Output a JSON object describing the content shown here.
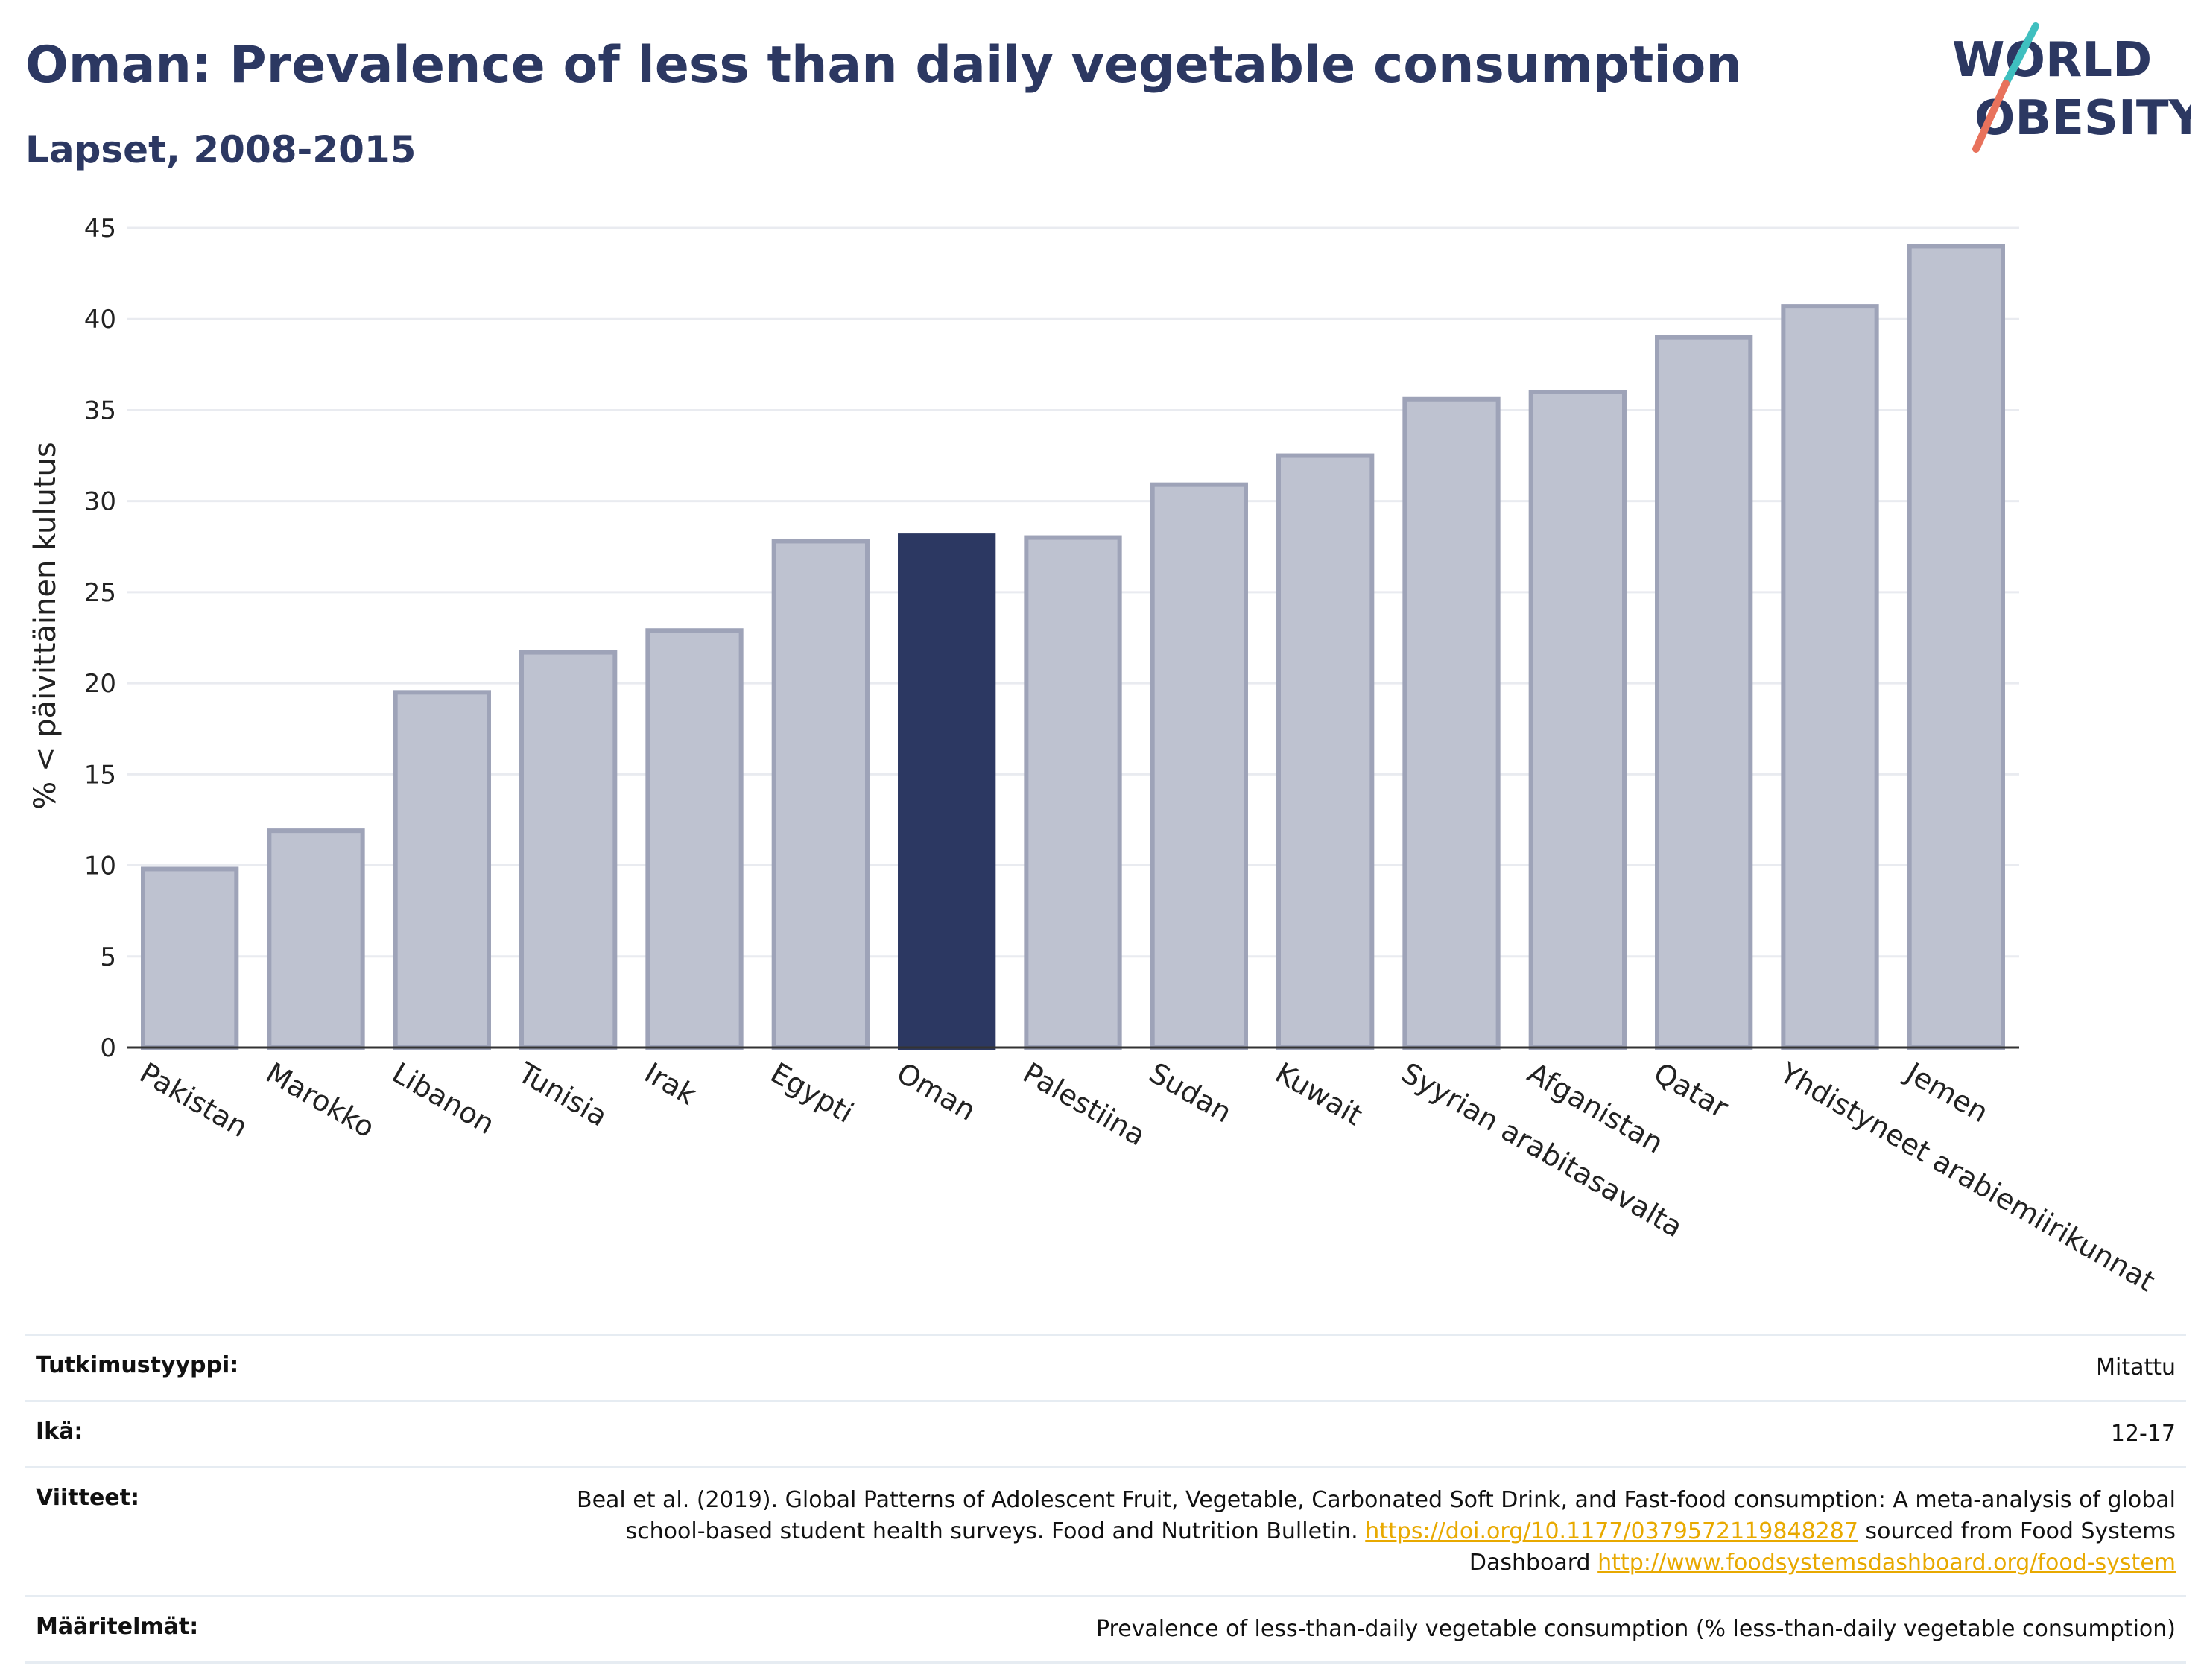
{
  "header": {
    "title": "Oman: Prevalence of less than daily vegetable consumption",
    "subtitle": "Lapset, 2008-2015"
  },
  "logo": {
    "line1": "WORLD",
    "line2": "OBESITY"
  },
  "colors": {
    "highlight": "#2c3862",
    "bar": "#bec2d0",
    "bar_border": "#9ea3b8",
    "grid": "#e9ebf0",
    "logo_text": "#2c3862",
    "logo_teal": "#3fbfbf",
    "logo_coral": "#e8725c",
    "link": "#e8a900"
  },
  "chart_data": {
    "type": "bar",
    "title": "Oman: Prevalence of less than daily vegetable consumption",
    "subtitle": "Lapset, 2008-2015",
    "ylabel": "% < päivittäinen kulutus",
    "xlabel": "",
    "ylim": [
      0,
      45
    ],
    "yticks": [
      0,
      5,
      10,
      15,
      20,
      25,
      30,
      35,
      40,
      45
    ],
    "grid": true,
    "highlight": "Oman",
    "categories": [
      "Pakistan",
      "Marokko",
      "Libanon",
      "Tunisia",
      "Irak",
      "Egypti",
      "Oman",
      "Palestiina",
      "Sudan",
      "Kuwait",
      "Syyrian arabitasavalta",
      "Afganistan",
      "Qatar",
      "Yhdistyneet arabiemiirikunnat",
      "Jemen"
    ],
    "values": [
      9.8,
      11.9,
      19.5,
      21.7,
      22.9,
      27.8,
      28.1,
      28.0,
      30.9,
      32.5,
      35.6,
      36.0,
      39.0,
      40.7,
      44.0
    ]
  },
  "info": {
    "rows": [
      {
        "label": "Tutkimustyyppi:",
        "value": "Mitattu"
      },
      {
        "label": "Ikä:",
        "value": "12-17"
      },
      {
        "label": "Viitteet:",
        "text1": "Beal et al. (2019). Global Patterns of Adolescent Fruit, Vegetable, Carbonated Soft Drink, and Fast-food consumption: A meta-analysis of global school-based student health surveys. Food and Nutrition Bulletin.",
        "link1": "https://doi.org/10.1177/0379572119848287",
        "text2": "sourced from Food Systems Dashboard",
        "link2": "http://www.foodsystemsdashboard.org/food-system"
      },
      {
        "label": "Määritelmät:",
        "value": "Prevalence of less-than-daily vegetable consumption (% less-than-daily vegetable consumption)"
      }
    ]
  }
}
